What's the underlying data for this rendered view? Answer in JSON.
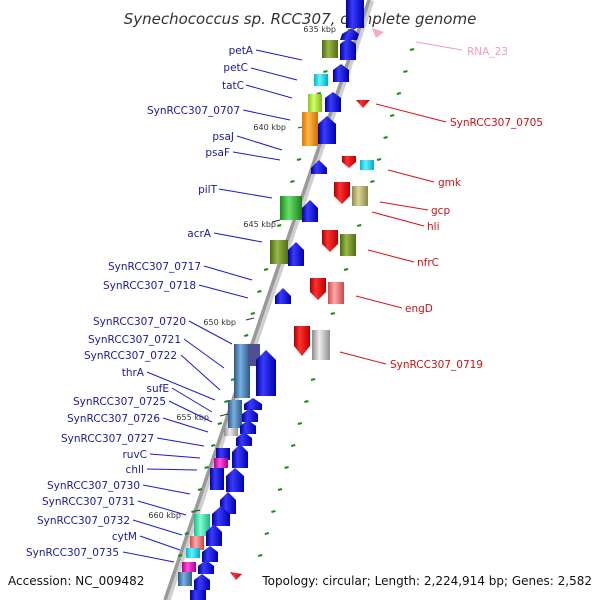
{
  "title": "Synechococcus sp. RCC307, complete genome",
  "footer": {
    "accession": "Accession: NC_009482",
    "summary": "Topology: circular; Length: 2,224,914 bp; Genes: 2,582"
  },
  "ticks": [
    "635 kbp",
    "640 kbp",
    "645 kbp",
    "650 kbp",
    "655 kbp",
    "660 kbp"
  ],
  "left_labels": [
    "petA",
    "petC",
    "tatC",
    "SynRCC307_0707",
    "psaJ",
    "psaF",
    "pilT",
    "acrA",
    "SynRCC307_0717",
    "SynRCC307_0718",
    "SynRCC307_0720",
    "SynRCC307_0721",
    "SynRCC307_0722",
    "thrA",
    "sufE",
    "SynRCC307_0725",
    "SynRCC307_0726",
    "SynRCC307_0727",
    "ruvC",
    "chlI",
    "SynRCC307_0730",
    "SynRCC307_0731",
    "SynRCC307_0732",
    "cytM",
    "SynRCC307_0735"
  ],
  "right_labels": [
    "RNA_23",
    "SynRCC307_0705",
    "gmk",
    "gcp",
    "hli",
    "nfrC",
    "engD",
    "SynRCC307_0719"
  ],
  "colors": {
    "forward_gene": "#1212e6",
    "reverse_gene": "#ee0000",
    "rna": "#f5a0c8",
    "backbone": "#9a9a9a",
    "fwd_label": "#1a1aa0",
    "rev_label": "#cc1111"
  }
}
